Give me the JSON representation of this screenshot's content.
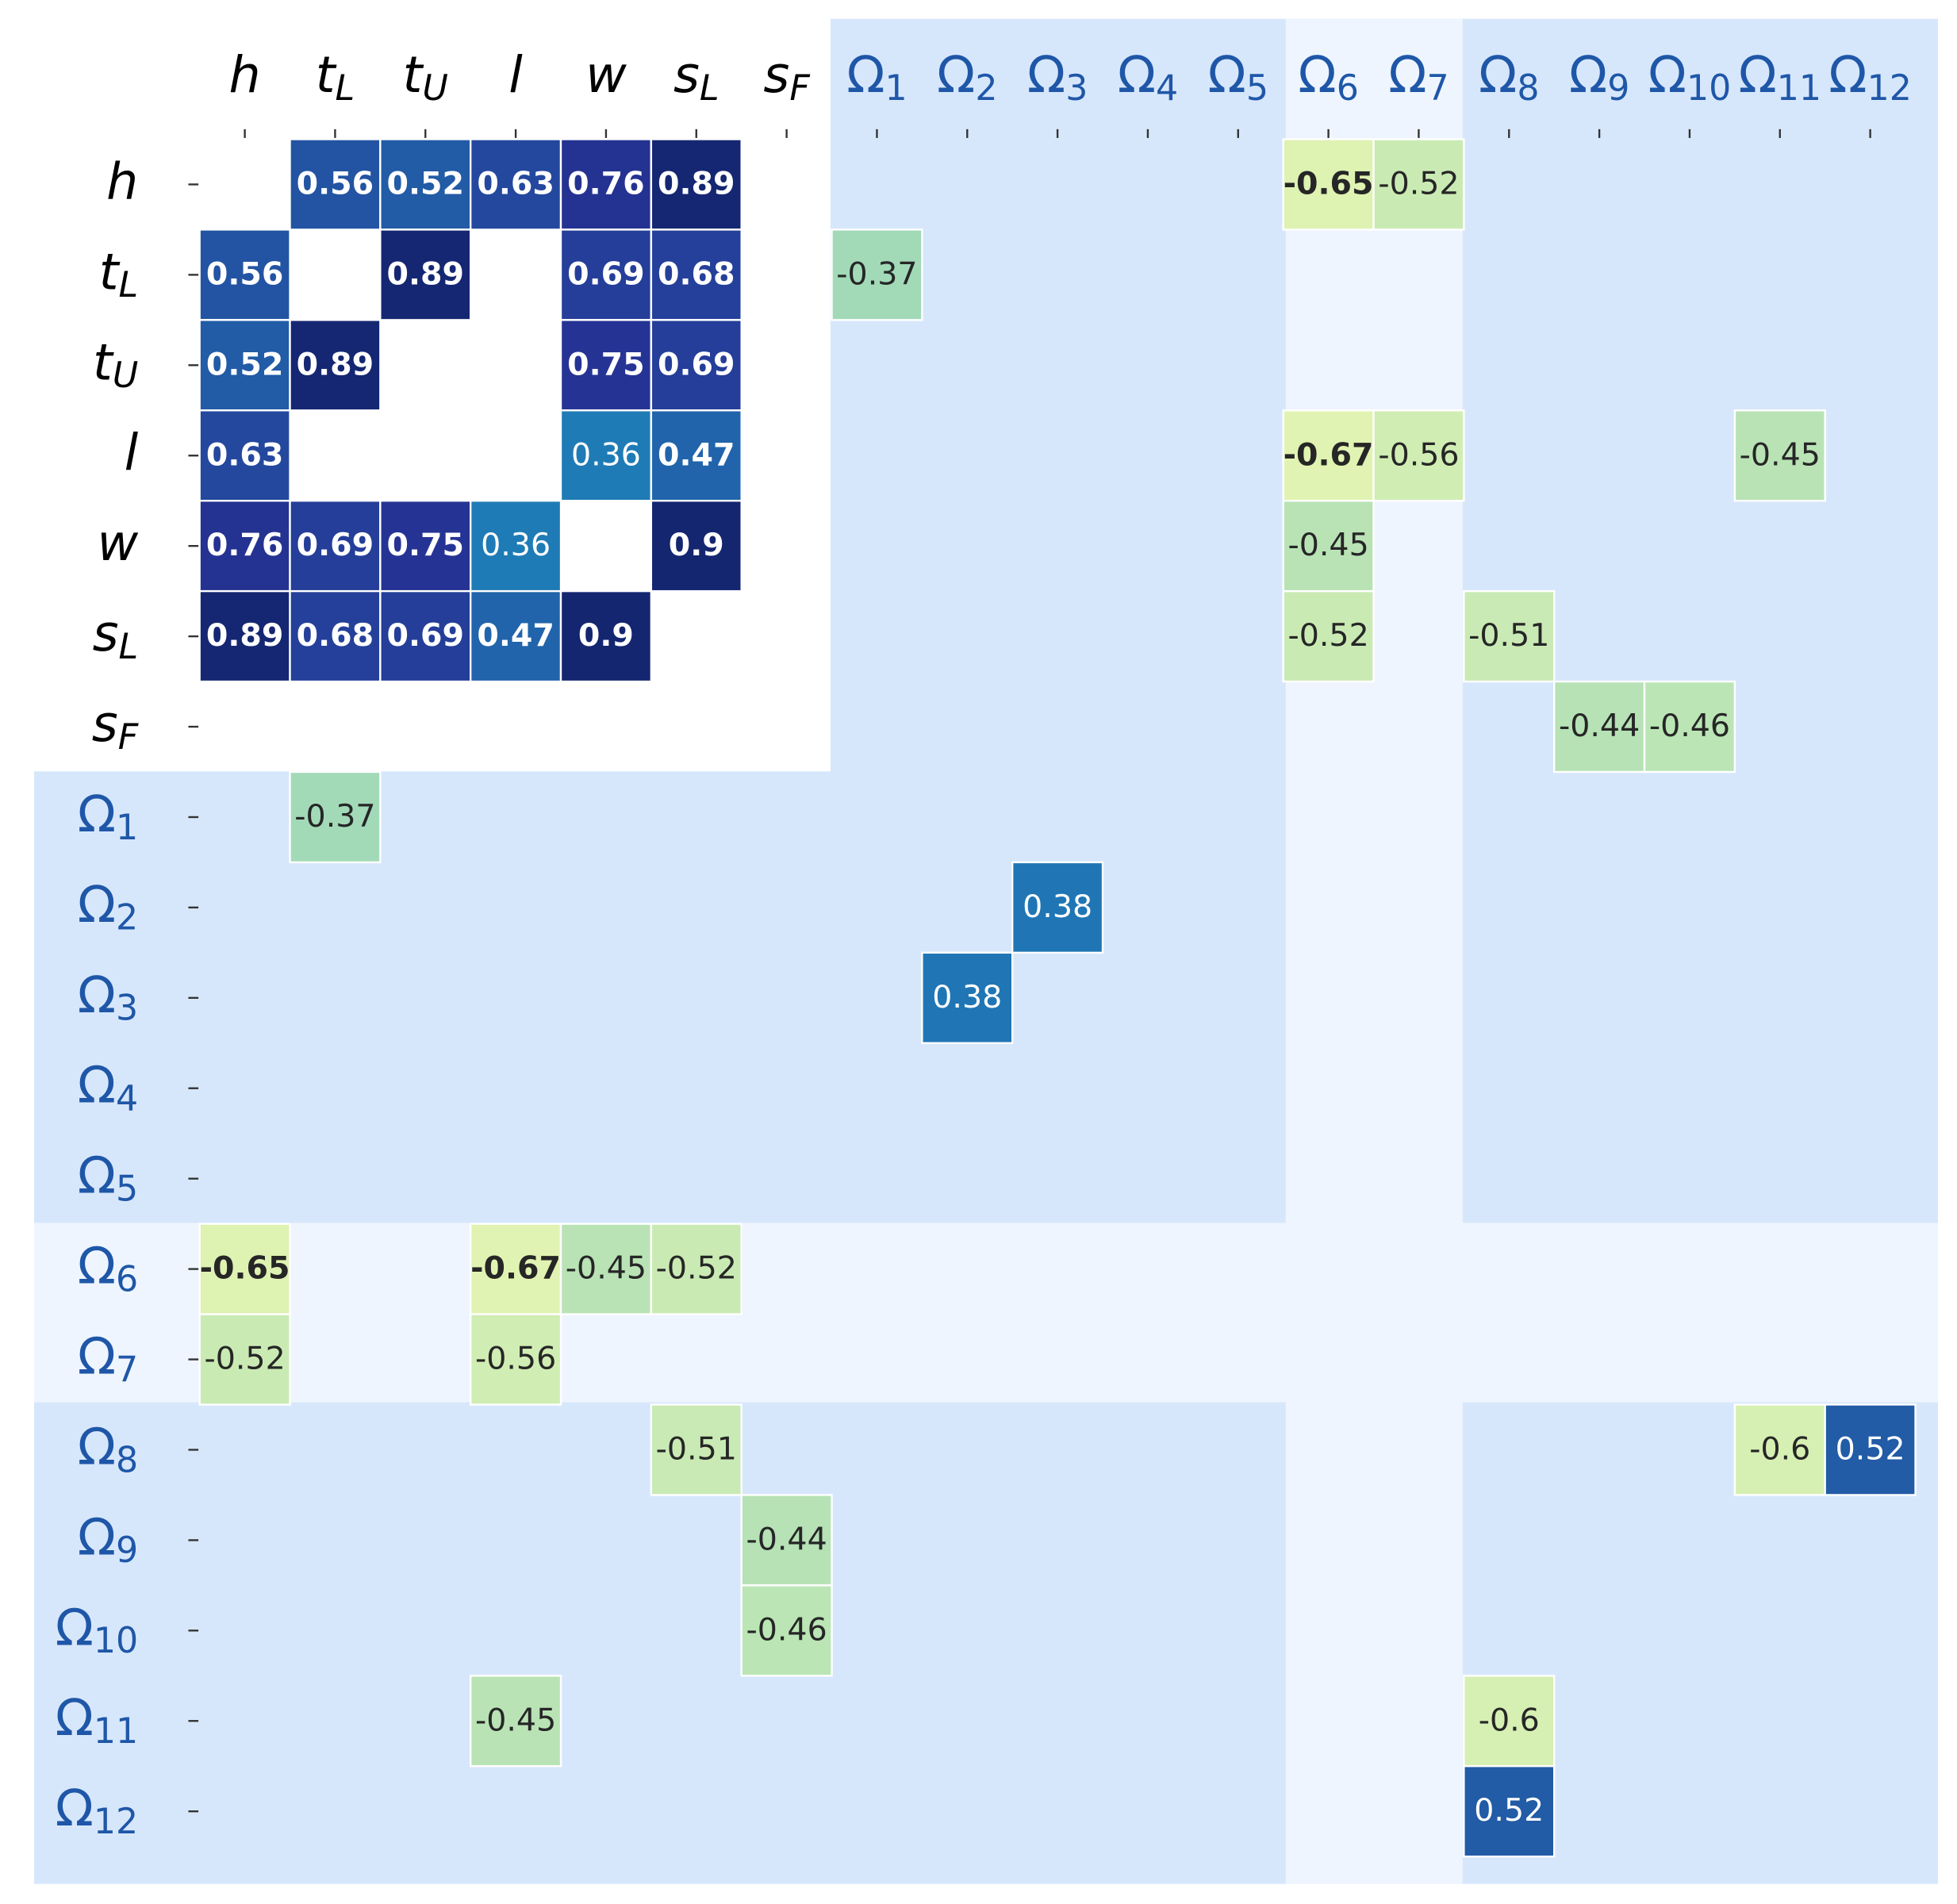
{
  "chart_data": {
    "type": "heatmap",
    "categories": [
      {
        "name": "h",
        "color": "#000000",
        "style": "italic"
      },
      {
        "name": "t",
        "sub": "L",
        "color": "#000000",
        "style": "italic"
      },
      {
        "name": "t",
        "sub": "U",
        "color": "#000000",
        "style": "italic"
      },
      {
        "name": "l",
        "color": "#000000",
        "style": "italic"
      },
      {
        "name": "w",
        "color": "#000000",
        "style": "italic"
      },
      {
        "name": "s",
        "sub": "L",
        "color": "#000000",
        "style": "italic"
      },
      {
        "name": "s",
        "sub": "F",
        "color": "#000000",
        "style": "italic"
      },
      {
        "name": "Ω",
        "sub": "1",
        "color": "#1f57a8",
        "style": "normal"
      },
      {
        "name": "Ω",
        "sub": "2",
        "color": "#1f57a8",
        "style": "normal"
      },
      {
        "name": "Ω",
        "sub": "3",
        "color": "#1f57a8",
        "style": "normal"
      },
      {
        "name": "Ω",
        "sub": "4",
        "color": "#1f57a8",
        "style": "normal"
      },
      {
        "name": "Ω",
        "sub": "5",
        "color": "#1f57a8",
        "style": "normal"
      },
      {
        "name": "Ω",
        "sub": "6",
        "color": "#1f57a8",
        "style": "normal"
      },
      {
        "name": "Ω",
        "sub": "7",
        "color": "#1f57a8",
        "style": "normal"
      },
      {
        "name": "Ω",
        "sub": "8",
        "color": "#1f57a8",
        "style": "normal"
      },
      {
        "name": "Ω",
        "sub": "9",
        "color": "#1f57a8",
        "style": "normal"
      },
      {
        "name": "Ω",
        "sub": "10",
        "color": "#1f57a8",
        "style": "normal"
      },
      {
        "name": "Ω",
        "sub": "11",
        "color": "#1f57a8",
        "style": "normal"
      },
      {
        "name": "Ω",
        "sub": "12",
        "color": "#1f57a8",
        "style": "normal"
      }
    ],
    "values": [
      [
        null,
        0.56,
        0.52,
        0.63,
        0.76,
        0.89,
        null,
        null,
        null,
        null,
        null,
        null,
        -0.65,
        -0.52,
        null,
        null,
        null,
        null,
        null
      ],
      [
        0.56,
        null,
        0.89,
        null,
        0.69,
        0.68,
        null,
        -0.37,
        null,
        null,
        null,
        null,
        null,
        null,
        null,
        null,
        null,
        null,
        null
      ],
      [
        0.52,
        0.89,
        null,
        null,
        0.75,
        0.69,
        null,
        null,
        null,
        null,
        null,
        null,
        null,
        null,
        null,
        null,
        null,
        null,
        null
      ],
      [
        0.63,
        null,
        null,
        null,
        0.36,
        0.47,
        null,
        null,
        null,
        null,
        null,
        null,
        -0.67,
        -0.56,
        null,
        null,
        null,
        -0.45,
        null
      ],
      [
        0.76,
        0.69,
        0.75,
        0.36,
        null,
        0.9,
        null,
        null,
        null,
        null,
        null,
        null,
        -0.45,
        null,
        null,
        null,
        null,
        null,
        null
      ],
      [
        0.89,
        0.68,
        0.69,
        0.47,
        0.9,
        null,
        null,
        null,
        null,
        null,
        null,
        null,
        -0.52,
        null,
        -0.51,
        null,
        null,
        null,
        null
      ],
      [
        null,
        null,
        null,
        null,
        null,
        null,
        null,
        null,
        null,
        null,
        null,
        null,
        null,
        null,
        null,
        -0.44,
        -0.46,
        null,
        null
      ],
      [
        null,
        -0.37,
        null,
        null,
        null,
        null,
        null,
        null,
        null,
        null,
        null,
        null,
        null,
        null,
        null,
        null,
        null,
        null,
        null
      ],
      [
        null,
        null,
        null,
        null,
        null,
        null,
        null,
        null,
        null,
        0.38,
        null,
        null,
        null,
        null,
        null,
        null,
        null,
        null,
        null
      ],
      [
        null,
        null,
        null,
        null,
        null,
        null,
        null,
        null,
        0.38,
        null,
        null,
        null,
        null,
        null,
        null,
        null,
        null,
        null,
        null
      ],
      [
        null,
        null,
        null,
        null,
        null,
        null,
        null,
        null,
        null,
        null,
        null,
        null,
        null,
        null,
        null,
        null,
        null,
        null,
        null
      ],
      [
        null,
        null,
        null,
        null,
        null,
        null,
        null,
        null,
        null,
        null,
        null,
        null,
        null,
        null,
        null,
        null,
        null,
        null,
        null
      ],
      [
        -0.65,
        null,
        null,
        -0.67,
        -0.45,
        -0.52,
        null,
        null,
        null,
        null,
        null,
        null,
        null,
        null,
        null,
        null,
        null,
        null,
        null
      ],
      [
        -0.52,
        null,
        null,
        -0.56,
        null,
        null,
        null,
        null,
        null,
        null,
        null,
        null,
        null,
        null,
        null,
        null,
        null,
        null,
        null
      ],
      [
        null,
        null,
        null,
        null,
        null,
        -0.51,
        null,
        null,
        null,
        null,
        null,
        null,
        null,
        null,
        null,
        null,
        null,
        -0.6,
        0.52
      ],
      [
        null,
        null,
        null,
        null,
        null,
        null,
        -0.44,
        null,
        null,
        null,
        null,
        null,
        null,
        null,
        null,
        null,
        null,
        null,
        null
      ],
      [
        null,
        null,
        null,
        null,
        null,
        null,
        -0.46,
        null,
        null,
        null,
        null,
        null,
        null,
        null,
        null,
        null,
        null,
        null,
        null
      ],
      [
        null,
        null,
        null,
        -0.45,
        null,
        null,
        null,
        null,
        null,
        null,
        null,
        null,
        null,
        null,
        -0.6,
        null,
        null,
        null,
        null
      ],
      [
        null,
        null,
        null,
        null,
        null,
        null,
        null,
        null,
        null,
        null,
        null,
        null,
        null,
        null,
        0.52,
        null,
        null,
        null,
        null
      ]
    ],
    "bold_cells": [
      [
        0,
        1
      ],
      [
        0,
        2
      ],
      [
        0,
        3
      ],
      [
        0,
        4
      ],
      [
        0,
        5
      ],
      [
        0,
        12
      ],
      [
        1,
        0
      ],
      [
        1,
        2
      ],
      [
        1,
        4
      ],
      [
        1,
        5
      ],
      [
        2,
        0
      ],
      [
        2,
        1
      ],
      [
        2,
        4
      ],
      [
        2,
        5
      ],
      [
        3,
        0
      ],
      [
        3,
        5
      ],
      [
        3,
        12
      ],
      [
        4,
        0
      ],
      [
        4,
        1
      ],
      [
        4,
        2
      ],
      [
        4,
        5
      ],
      [
        5,
        0
      ],
      [
        5,
        1
      ],
      [
        5,
        2
      ],
      [
        5,
        3
      ],
      [
        5,
        4
      ],
      [
        12,
        0
      ],
      [
        12,
        3
      ]
    ],
    "colormap": [
      "#ffffd9",
      "#edf8b1",
      "#c7e9b4",
      "#7fcdbb",
      "#41b6c4",
      "#1d91c0",
      "#225ea8",
      "#253494",
      "#081d58"
    ],
    "vlim": [
      -1,
      1
    ]
  }
}
